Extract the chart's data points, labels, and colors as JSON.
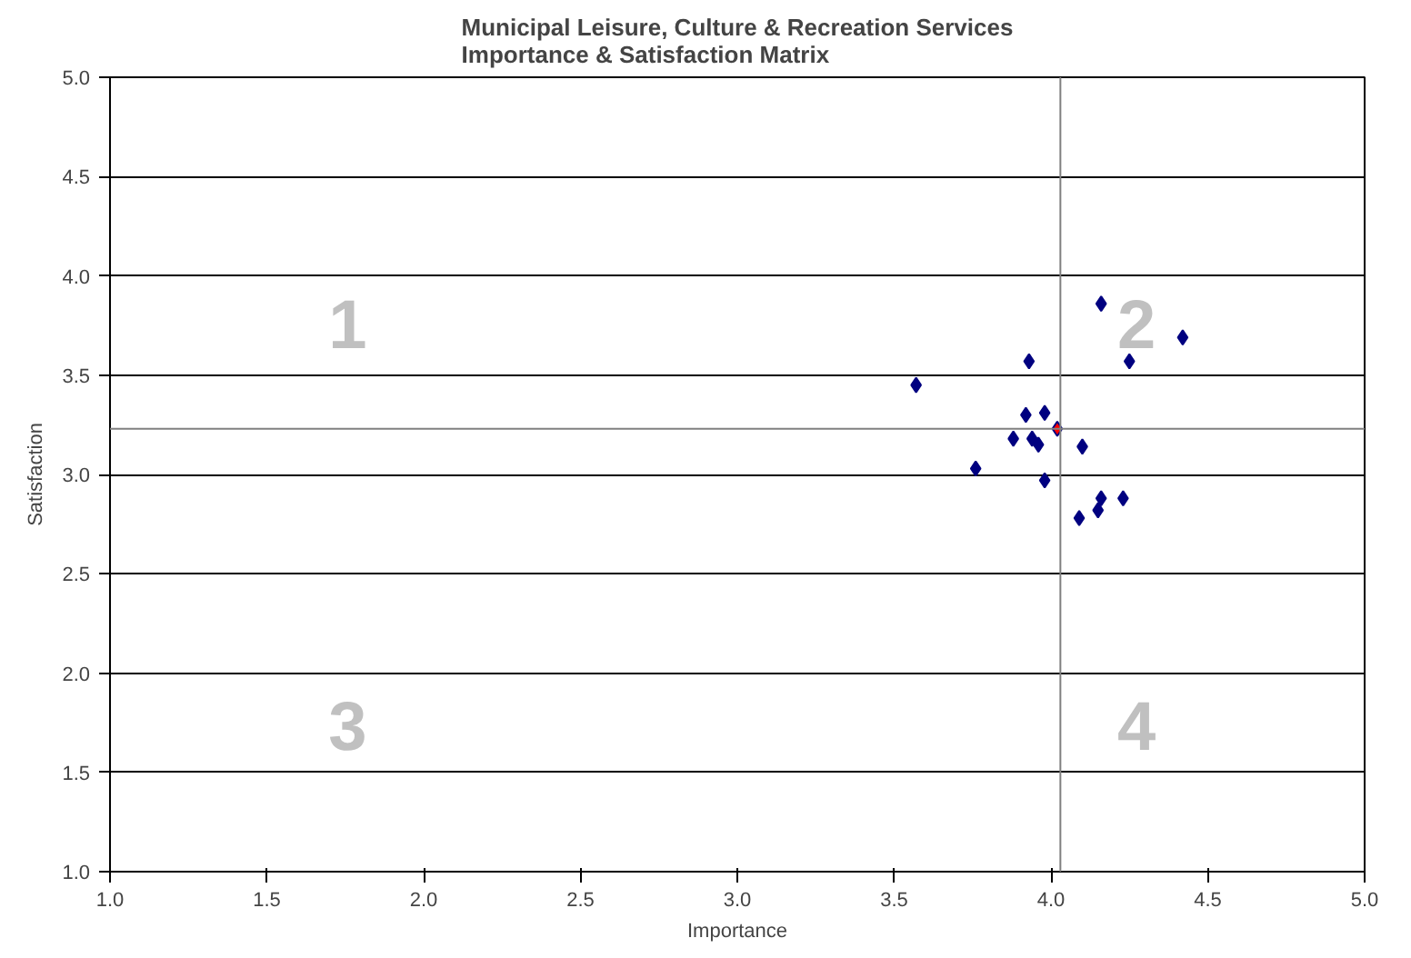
{
  "chart_data": {
    "type": "scatter",
    "title": "Municipal Leisure, Culture & Recreation Services\nImportance & Satisfaction Matrix",
    "xlabel": "Importance",
    "ylabel": "Satisfaction",
    "series": [
      {
        "color": "#000080",
        "x": [
          3.57,
          3.76,
          3.93,
          3.92,
          3.98,
          3.88,
          3.94,
          3.96,
          3.98,
          4.1,
          4.16,
          4.25,
          4.42,
          4.16,
          4.23,
          4.15,
          4.09
        ],
        "values": [
          3.45,
          3.03,
          3.57,
          3.3,
          3.31,
          3.18,
          3.18,
          3.15,
          2.97,
          3.14,
          3.86,
          3.57,
          3.69,
          2.88,
          2.88,
          2.82,
          2.78
        ]
      },
      {
        "color": "#ff0000",
        "x": [
          4.02
        ],
        "values": [
          3.23
        ]
      }
    ],
    "marker": "diamond",
    "xlim": [
      1.0,
      5.0
    ],
    "ylim": [
      1.0,
      5.0
    ],
    "xticks": [
      {
        "value": 1.0,
        "label": "1.0"
      },
      {
        "value": 1.5,
        "label": "1.5"
      },
      {
        "value": 2.0,
        "label": "2.0"
      },
      {
        "value": 2.5,
        "label": "2.5"
      },
      {
        "value": 3.0,
        "label": "3.0"
      },
      {
        "value": 3.5,
        "label": "3.5"
      },
      {
        "value": 4.0,
        "label": "4.0"
      },
      {
        "value": 4.5,
        "label": "4.5"
      },
      {
        "value": 5.0,
        "label": "5.0"
      }
    ],
    "yticks": [
      {
        "value": 1.0,
        "label": "1.0"
      },
      {
        "value": 1.5,
        "label": "1.5"
      },
      {
        "value": 2.0,
        "label": "2.0"
      },
      {
        "value": 2.5,
        "label": "2.5"
      },
      {
        "value": 3.0,
        "label": "3.0"
      },
      {
        "value": 3.5,
        "label": "3.5"
      },
      {
        "value": 4.0,
        "label": "4.0"
      },
      {
        "value": 4.5,
        "label": "4.5"
      },
      {
        "value": 5.0,
        "label": "5.0"
      }
    ],
    "grid": "y",
    "ref_lines": [
      {
        "axis": "x",
        "value": 4.03,
        "color": "#808080"
      },
      {
        "axis": "y",
        "value": 3.23,
        "color": "#808080"
      }
    ],
    "annotations": [
      "1",
      "2",
      "3",
      "4"
    ]
  }
}
